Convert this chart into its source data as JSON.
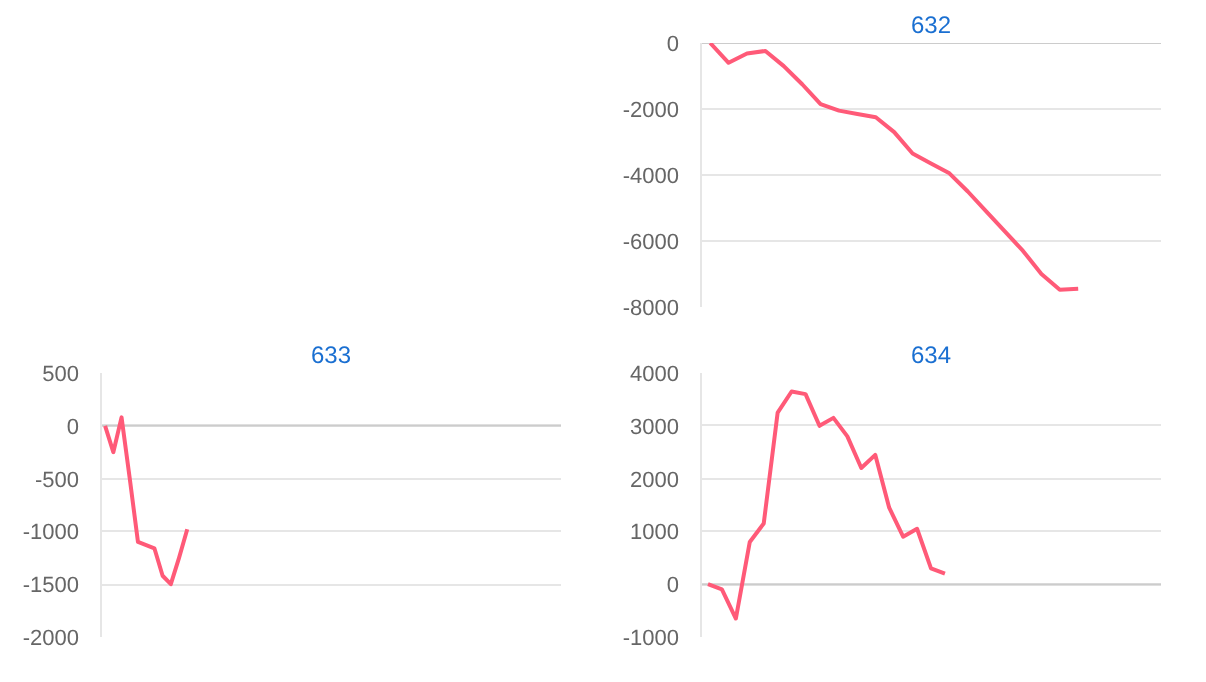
{
  "chart_data": [
    {
      "type": "line",
      "title": "632",
      "categories": [
        null,
        null,
        null,
        null,
        null,
        null,
        null,
        null,
        null,
        null,
        null,
        null,
        null,
        null,
        null,
        null,
        null,
        null,
        null,
        null,
        null,
        null,
        null,
        null,
        null
      ],
      "series": [
        {
          "color": "#ff5a78",
          "values": [
            0,
            -600,
            -320,
            -240,
            -700,
            -1250,
            -1850,
            -2050,
            -2150,
            -2250,
            -2700,
            -3350,
            -3650,
            -3950,
            -4500,
            -5100,
            -5700,
            -6300,
            -7000,
            -7480,
            -7450,
            null,
            null,
            null,
            null
          ]
        }
      ],
      "ylim": [
        -8000,
        0
      ],
      "yticks": [
        -8000,
        -6000,
        -4000,
        -2000,
        0
      ],
      "grid": "y",
      "tick_labels": "y",
      "marker": "none"
    },
    {
      "type": "line",
      "title": "633",
      "categories": [
        null,
        null,
        null,
        null,
        null,
        null,
        null,
        null,
        null,
        null,
        null,
        null,
        null,
        null,
        null,
        null,
        null,
        null,
        null,
        null,
        null,
        null,
        null,
        null,
        null,
        null,
        null,
        null,
        null,
        null,
        null,
        null,
        null,
        null,
        null,
        null,
        null,
        null,
        null,
        null,
        null,
        null,
        null,
        null,
        null,
        null,
        null,
        null,
        null,
        null,
        null,
        null,
        null,
        null,
        null,
        null
      ],
      "series": [
        {
          "color": "#ff5a78",
          "values": [
            0,
            -250,
            80,
            -500,
            -1100,
            -1130,
            -1160,
            -1420,
            -1500,
            -1250,
            -980,
            null,
            null,
            null,
            null,
            null,
            null,
            null,
            null,
            null,
            null,
            null,
            null,
            null,
            null,
            null,
            null,
            null,
            null,
            null,
            null,
            null,
            null,
            null,
            null,
            null,
            null,
            null,
            null,
            null,
            null,
            null,
            null,
            null,
            null,
            null,
            null,
            null,
            null,
            null,
            null,
            null,
            null,
            null,
            null,
            null
          ]
        }
      ],
      "ylim": [
        -2000,
        500
      ],
      "yticks": [
        -2000,
        -1500,
        -1000,
        -500,
        0,
        500
      ],
      "grid": "y",
      "tick_labels": "y",
      "marker": "none"
    },
    {
      "type": "line",
      "title": "634",
      "categories": [
        null,
        null,
        null,
        null,
        null,
        null,
        null,
        null,
        null,
        null,
        null,
        null,
        null,
        null,
        null,
        null,
        null,
        null,
        null,
        null,
        null,
        null,
        null,
        null,
        null,
        null,
        null,
        null,
        null,
        null,
        null,
        null,
        null
      ],
      "series": [
        {
          "color": "#ff5a78",
          "values": [
            0,
            -100,
            -650,
            800,
            1150,
            3250,
            3650,
            3600,
            3000,
            3150,
            2800,
            2200,
            2450,
            1450,
            900,
            1050,
            300,
            200,
            null,
            null,
            null,
            null,
            null,
            null,
            null,
            null,
            null,
            null,
            null,
            null,
            null,
            null,
            null
          ]
        }
      ],
      "ylim": [
        -1000,
        4000
      ],
      "yticks": [
        -1000,
        0,
        1000,
        2000,
        3000,
        4000
      ],
      "grid": "y",
      "tick_labels": "y",
      "marker": "none"
    }
  ]
}
